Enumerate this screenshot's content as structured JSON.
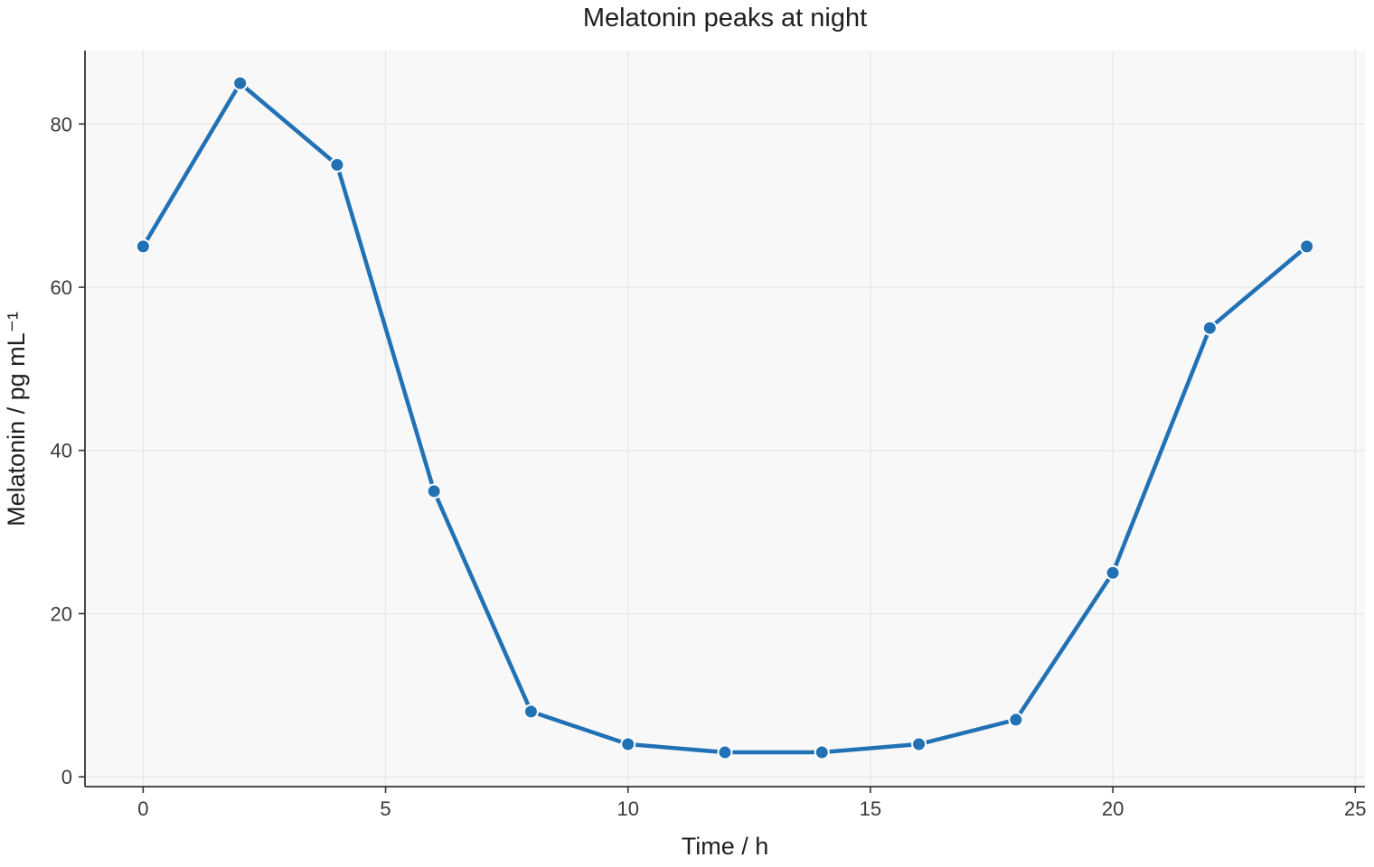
{
  "chart_data": {
    "type": "line",
    "title": "Melatonin peaks at night",
    "xlabel": "Time / h",
    "ylabel": "Melatonin / pg mL⁻¹",
    "xlim": [
      -1.2,
      25.2
    ],
    "ylim": [
      -1.2,
      89
    ],
    "xticks": [
      0,
      5,
      10,
      15,
      20,
      25
    ],
    "yticks": [
      0,
      20,
      40,
      60,
      80
    ],
    "grid": true,
    "series": [
      {
        "color": "#2171b5",
        "x": [
          0,
          2,
          4,
          6,
          8,
          10,
          12,
          14,
          16,
          18,
          20,
          22,
          24
        ],
        "y": [
          65,
          85,
          75,
          35,
          8,
          4,
          3,
          3,
          4,
          7,
          25,
          55,
          65
        ]
      }
    ]
  }
}
